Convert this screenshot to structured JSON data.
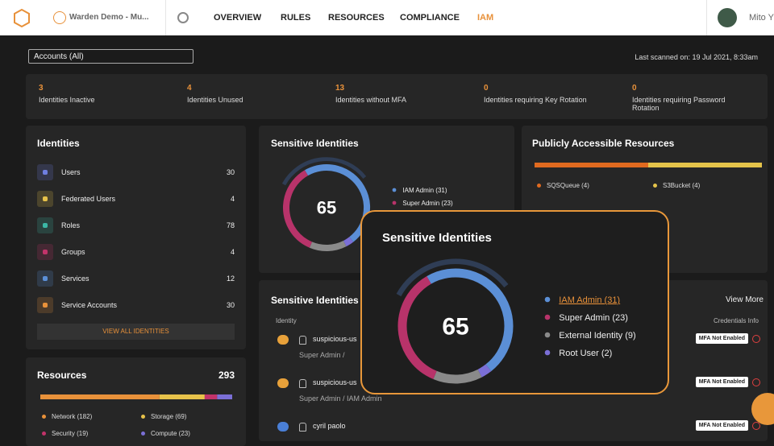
{
  "nav": {
    "brand": "Warden Demo - Mu...",
    "items": [
      "OVERVIEW",
      "RULES",
      "RESOURCES",
      "COMPLIANCE",
      "IAM"
    ],
    "user": "Mito Y"
  },
  "toolbar": {
    "account_filter": "Accounts (All)",
    "last_scanned": "Last scanned on: 19 Jul 2021, 8:33am"
  },
  "stats": [
    {
      "value": 3,
      "label": "Identities Inactive"
    },
    {
      "value": 4,
      "label": "Identities Unused"
    },
    {
      "value": 13,
      "label": "Identities without MFA"
    },
    {
      "value": 0,
      "label": "Identities requiring Key Rotation"
    },
    {
      "value": 0,
      "label": "Identities requiring Password Rotation"
    }
  ],
  "identities": {
    "title": "Identities",
    "items": [
      {
        "label": "Users",
        "count": 30,
        "color": "#6f7fe0"
      },
      {
        "label": "Federated Users",
        "count": 4,
        "color": "#e7c24a"
      },
      {
        "label": "Roles",
        "count": 78,
        "color": "#3bb7a5"
      },
      {
        "label": "Groups",
        "count": 4,
        "color": "#c2336a"
      },
      {
        "label": "Services",
        "count": 12,
        "color": "#5b8fd6"
      },
      {
        "label": "Service Accounts",
        "count": 30,
        "color": "#e8913a"
      }
    ],
    "button": "VIEW ALL IDENTITIES"
  },
  "resources": {
    "title": "Resources",
    "total": 293,
    "segments": [
      {
        "label": "Network (182)",
        "value": 182,
        "color": "#e8913a"
      },
      {
        "label": "Storage (69)",
        "value": 69,
        "color": "#e7c24a"
      },
      {
        "label": "Security (19)",
        "value": 19,
        "color": "#c2336a"
      },
      {
        "label": "Compute (23)",
        "value": 23,
        "color": "#7b6fd6"
      }
    ]
  },
  "sensitive_identities": {
    "title": "Sensitive Identities",
    "total": 65,
    "segments": [
      {
        "label": "IAM Admin (31)",
        "value": 31,
        "color": "#5b8fd6"
      },
      {
        "label": "Super Admin (23)",
        "value": 23,
        "color": "#b8336a"
      },
      {
        "label": "External Identity (9)",
        "value": 9,
        "color": "#8a8a8a"
      },
      {
        "label": "Root User (2)",
        "value": 2,
        "color": "#7b6fd6"
      }
    ]
  },
  "public_resources": {
    "title": "Publicly Accessible Resources",
    "segments": [
      {
        "label": "SQSQueue (4)",
        "value": 4,
        "color": "#e06a1f"
      },
      {
        "label": "S3Bucket (4)",
        "value": 4,
        "color": "#e4c34a"
      }
    ]
  },
  "sensitive_table": {
    "title": "Sensitive Identities",
    "view_more": "View More",
    "columns": [
      "Identity",
      "Credentials Info"
    ],
    "rows": [
      {
        "name": "suspicious-us",
        "roles": "Super Admin /",
        "credentials": "MFA Not Enabled"
      },
      {
        "name": "suspicious-us",
        "roles": "Super Admin / IAM Admin",
        "credentials": "MFA Not Enabled"
      },
      {
        "name": "cyril paolo",
        "roles": "",
        "credentials": "MFA Not Enabled"
      }
    ]
  }
}
